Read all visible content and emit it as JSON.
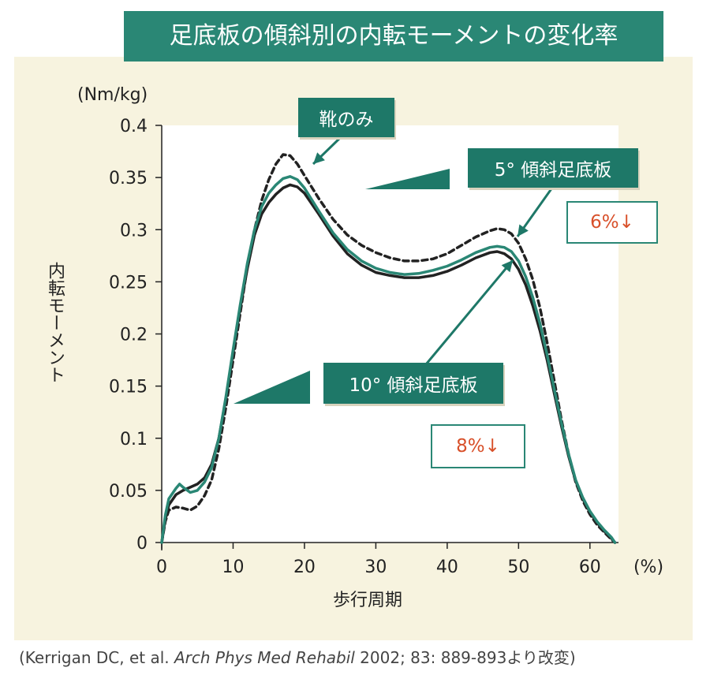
{
  "title": "足底板の傾斜別の内転モーメントの変化率",
  "chart_data": {
    "type": "line",
    "y_unit": "(Nm/kg)",
    "ylabel": "内転モーメント",
    "xlabel": "歩行周期",
    "x_unit": "(%)",
    "xlim": [
      0,
      64
    ],
    "ylim": [
      0,
      0.4
    ],
    "x_ticks": [
      "0",
      "10",
      "20",
      "30",
      "40",
      "50",
      "60"
    ],
    "y_ticks": [
      "0",
      "0.05",
      "0.1",
      "0.15",
      "0.2",
      "0.25",
      "0.3",
      "0.35",
      "0.4"
    ],
    "grid": false,
    "series": [
      {
        "name": "靴のみ",
        "style": "dashed",
        "color": "#222222",
        "points": [
          [
            0,
            0
          ],
          [
            0.5,
            0.02
          ],
          [
            1,
            0.031
          ],
          [
            2,
            0.034
          ],
          [
            3,
            0.033
          ],
          [
            4,
            0.031
          ],
          [
            5,
            0.035
          ],
          [
            6,
            0.045
          ],
          [
            7,
            0.06
          ],
          [
            8,
            0.09
          ],
          [
            9,
            0.13
          ],
          [
            10,
            0.175
          ],
          [
            11,
            0.22
          ],
          [
            12,
            0.265
          ],
          [
            13,
            0.3
          ],
          [
            14,
            0.328
          ],
          [
            15,
            0.348
          ],
          [
            16,
            0.363
          ],
          [
            17,
            0.372
          ],
          [
            18,
            0.371
          ],
          [
            19,
            0.363
          ],
          [
            20,
            0.352
          ],
          [
            22,
            0.33
          ],
          [
            24,
            0.31
          ],
          [
            26,
            0.295
          ],
          [
            28,
            0.285
          ],
          [
            30,
            0.278
          ],
          [
            32,
            0.273
          ],
          [
            34,
            0.27
          ],
          [
            36,
            0.27
          ],
          [
            38,
            0.272
          ],
          [
            40,
            0.277
          ],
          [
            42,
            0.285
          ],
          [
            44,
            0.293
          ],
          [
            46,
            0.299
          ],
          [
            47,
            0.301
          ],
          [
            48,
            0.3
          ],
          [
            49,
            0.296
          ],
          [
            50,
            0.287
          ],
          [
            51,
            0.272
          ],
          [
            52,
            0.252
          ],
          [
            53,
            0.225
          ],
          [
            54,
            0.192
          ],
          [
            55,
            0.155
          ],
          [
            56,
            0.118
          ],
          [
            57,
            0.085
          ],
          [
            58,
            0.058
          ],
          [
            59,
            0.04
          ],
          [
            60,
            0.027
          ],
          [
            61,
            0.017
          ],
          [
            62,
            0.01
          ],
          [
            63,
            0.003
          ],
          [
            63.5,
            0
          ]
        ]
      },
      {
        "name": "5° 傾斜足底板",
        "style": "solid",
        "color": "#2a8775",
        "points": [
          [
            0,
            0
          ],
          [
            0.5,
            0.026
          ],
          [
            1,
            0.042
          ],
          [
            2,
            0.052
          ],
          [
            2.5,
            0.056
          ],
          [
            3,
            0.053
          ],
          [
            4,
            0.048
          ],
          [
            5,
            0.05
          ],
          [
            6,
            0.058
          ],
          [
            7,
            0.072
          ],
          [
            8,
            0.1
          ],
          [
            9,
            0.14
          ],
          [
            10,
            0.185
          ],
          [
            11,
            0.228
          ],
          [
            12,
            0.268
          ],
          [
            13,
            0.3
          ],
          [
            14,
            0.322
          ],
          [
            15,
            0.335
          ],
          [
            16,
            0.343
          ],
          [
            17,
            0.349
          ],
          [
            18,
            0.351
          ],
          [
            19,
            0.348
          ],
          [
            20,
            0.34
          ],
          [
            22,
            0.318
          ],
          [
            24,
            0.297
          ],
          [
            26,
            0.281
          ],
          [
            28,
            0.27
          ],
          [
            30,
            0.263
          ],
          [
            32,
            0.259
          ],
          [
            34,
            0.257
          ],
          [
            36,
            0.258
          ],
          [
            38,
            0.261
          ],
          [
            40,
            0.265
          ],
          [
            42,
            0.271
          ],
          [
            44,
            0.278
          ],
          [
            46,
            0.283
          ],
          [
            47,
            0.284
          ],
          [
            48,
            0.283
          ],
          [
            49,
            0.279
          ],
          [
            50,
            0.27
          ],
          [
            51,
            0.255
          ],
          [
            52,
            0.235
          ],
          [
            53,
            0.21
          ],
          [
            54,
            0.18
          ],
          [
            55,
            0.147
          ],
          [
            56,
            0.115
          ],
          [
            57,
            0.085
          ],
          [
            58,
            0.06
          ],
          [
            59,
            0.043
          ],
          [
            60,
            0.03
          ],
          [
            61,
            0.02
          ],
          [
            62,
            0.012
          ],
          [
            63,
            0.005
          ],
          [
            63.5,
            0
          ]
        ]
      },
      {
        "name": "10° 傾斜足底板",
        "style": "solid",
        "color": "#222222",
        "points": [
          [
            0,
            0
          ],
          [
            0.5,
            0.022
          ],
          [
            1,
            0.036
          ],
          [
            2,
            0.046
          ],
          [
            3,
            0.05
          ],
          [
            4,
            0.053
          ],
          [
            5,
            0.056
          ],
          [
            6,
            0.062
          ],
          [
            7,
            0.075
          ],
          [
            8,
            0.1
          ],
          [
            9,
            0.138
          ],
          [
            10,
            0.182
          ],
          [
            11,
            0.225
          ],
          [
            12,
            0.263
          ],
          [
            13,
            0.295
          ],
          [
            14,
            0.315
          ],
          [
            15,
            0.326
          ],
          [
            16,
            0.334
          ],
          [
            17,
            0.34
          ],
          [
            18,
            0.343
          ],
          [
            19,
            0.341
          ],
          [
            20,
            0.335
          ],
          [
            22,
            0.315
          ],
          [
            24,
            0.294
          ],
          [
            26,
            0.277
          ],
          [
            28,
            0.266
          ],
          [
            30,
            0.259
          ],
          [
            32,
            0.256
          ],
          [
            34,
            0.254
          ],
          [
            36,
            0.254
          ],
          [
            38,
            0.256
          ],
          [
            40,
            0.26
          ],
          [
            42,
            0.266
          ],
          [
            44,
            0.273
          ],
          [
            46,
            0.278
          ],
          [
            47,
            0.279
          ],
          [
            48,
            0.277
          ],
          [
            49,
            0.272
          ],
          [
            50,
            0.262
          ],
          [
            51,
            0.247
          ],
          [
            52,
            0.227
          ],
          [
            53,
            0.203
          ],
          [
            54,
            0.175
          ],
          [
            55,
            0.143
          ],
          [
            56,
            0.112
          ],
          [
            57,
            0.083
          ],
          [
            58,
            0.059
          ],
          [
            59,
            0.042
          ],
          [
            60,
            0.029
          ],
          [
            61,
            0.019
          ],
          [
            62,
            0.011
          ],
          [
            63,
            0.004
          ],
          [
            63.5,
            0
          ]
        ]
      }
    ],
    "annotations": [
      {
        "label": "靴のみ"
      },
      {
        "label": "5° 傾斜足底板",
        "change": "6%↓"
      },
      {
        "label": "10° 傾斜足底板",
        "change": "8%↓"
      }
    ]
  },
  "citation": {
    "pre": "(Kerrigan DC, et al. ",
    "journal": "Arch Phys Med Rehabil",
    "post": " 2002; 83: 889-893より改変)"
  }
}
